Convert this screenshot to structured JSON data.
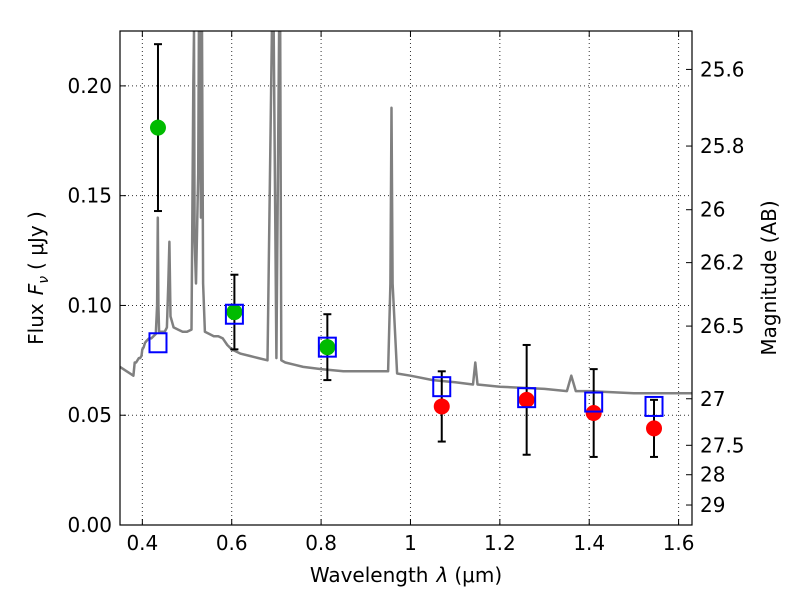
{
  "chart_data": {
    "type": "scatter",
    "xlabel_text": "Wavelength",
    "xlabel_symbol": "λ",
    "xlabel_unit": "(μm)",
    "ylabel_text": "Flux",
    "ylabel_symbol_main": "F",
    "ylabel_symbol_sub": "ν",
    "ylabel_unit": "( μJy )",
    "ylabel_right": "Magnitude (AB)",
    "xlim": [
      0.35,
      1.63
    ],
    "ylim": [
      0.0,
      0.225
    ],
    "grid": true,
    "x_ticks": [
      0.4,
      0.6,
      0.8,
      1.0,
      1.2,
      1.4,
      1.6
    ],
    "x_tick_labels": [
      "0.4",
      "0.6",
      "0.8",
      "1",
      "1.2",
      "1.4",
      "1.6"
    ],
    "y_ticks": [
      0.0,
      0.05,
      0.1,
      0.15,
      0.2
    ],
    "y_tick_labels": [
      "0.00",
      "0.05",
      "0.10",
      "0.15",
      "0.20"
    ],
    "right_ticks": [
      {
        "label": "25.6",
        "flux": 0.2075
      },
      {
        "label": "25.8",
        "flux": 0.1726
      },
      {
        "label": "26",
        "flux": 0.1436
      },
      {
        "label": "26.2",
        "flux": 0.1195
      },
      {
        "label": "26.5",
        "flux": 0.0906
      },
      {
        "label": "27",
        "flux": 0.0575
      },
      {
        "label": "27.5",
        "flux": 0.0363
      },
      {
        "label": "28",
        "flux": 0.0229
      },
      {
        "label": "29",
        "flux": 0.0091
      }
    ],
    "series": [
      {
        "kind": "observed-optical",
        "color": "#00bb00",
        "points": [
          {
            "x": 0.435,
            "y": 0.181,
            "err": 0.038
          },
          {
            "x": 0.606,
            "y": 0.097,
            "err": 0.017
          },
          {
            "x": 0.814,
            "y": 0.081,
            "err": 0.015
          }
        ]
      },
      {
        "kind": "observed-infrared",
        "color": "#ff0000",
        "points": [
          {
            "x": 1.07,
            "y": 0.054,
            "err": 0.016
          },
          {
            "x": 1.26,
            "y": 0.057,
            "err": 0.025
          },
          {
            "x": 1.41,
            "y": 0.051,
            "err": 0.02
          },
          {
            "x": 1.545,
            "y": 0.044,
            "err": 0.013
          }
        ]
      },
      {
        "kind": "model-photometry",
        "color": "#0000ff",
        "points": [
          {
            "x": 0.435,
            "y": 0.083
          },
          {
            "x": 0.606,
            "y": 0.096
          },
          {
            "x": 0.814,
            "y": 0.081
          },
          {
            "x": 1.07,
            "y": 0.063
          },
          {
            "x": 1.26,
            "y": 0.058
          },
          {
            "x": 1.41,
            "y": 0.056
          },
          {
            "x": 1.545,
            "y": 0.054
          }
        ]
      },
      {
        "kind": "model-spectrum",
        "color": "#808080",
        "x": [
          0.35,
          0.365,
          0.38,
          0.383,
          0.386,
          0.392,
          0.395,
          0.398,
          0.4,
          0.403,
          0.406,
          0.41,
          0.415,
          0.42,
          0.425,
          0.43,
          0.433,
          0.4345,
          0.436,
          0.4375,
          0.44,
          0.445,
          0.45,
          0.455,
          0.458,
          0.4605,
          0.463,
          0.47,
          0.48,
          0.49,
          0.5,
          0.51,
          0.514,
          0.5155,
          0.517,
          0.52,
          0.525,
          0.5265,
          0.528,
          0.531,
          0.5335,
          0.536,
          0.54,
          0.55,
          0.56,
          0.57,
          0.58,
          0.59,
          0.6,
          0.62,
          0.64,
          0.66,
          0.68,
          0.69,
          0.692,
          0.694,
          0.7,
          0.706,
          0.7085,
          0.711,
          0.72,
          0.74,
          0.76,
          0.8,
          0.85,
          0.9,
          0.95,
          0.955,
          0.9575,
          0.96,
          0.97,
          1.0,
          1.05,
          1.1,
          1.14,
          1.145,
          1.15,
          1.2,
          1.3,
          1.35,
          1.36,
          1.37,
          1.4,
          1.5,
          1.63
        ],
        "y": [
          0.072,
          0.07,
          0.068,
          0.074,
          0.074,
          0.076,
          0.076,
          0.077,
          0.08,
          0.081,
          0.083,
          0.084,
          0.085,
          0.085,
          0.086,
          0.087,
          0.1,
          0.14,
          0.1,
          0.088,
          0.088,
          0.088,
          0.088,
          0.09,
          0.11,
          0.129,
          0.095,
          0.09,
          0.089,
          0.088,
          0.088,
          0.089,
          0.2,
          0.225,
          0.13,
          0.11,
          0.16,
          0.225,
          0.225,
          0.14,
          0.225,
          0.11,
          0.088,
          0.087,
          0.086,
          0.086,
          0.085,
          0.082,
          0.08,
          0.078,
          0.077,
          0.076,
          0.075,
          0.225,
          0.225,
          0.225,
          0.076,
          0.225,
          0.225,
          0.075,
          0.074,
          0.073,
          0.072,
          0.071,
          0.07,
          0.07,
          0.07,
          0.11,
          0.19,
          0.11,
          0.069,
          0.068,
          0.066,
          0.065,
          0.064,
          0.074,
          0.064,
          0.063,
          0.062,
          0.061,
          0.068,
          0.061,
          0.061,
          0.06,
          0.06
        ]
      }
    ]
  }
}
